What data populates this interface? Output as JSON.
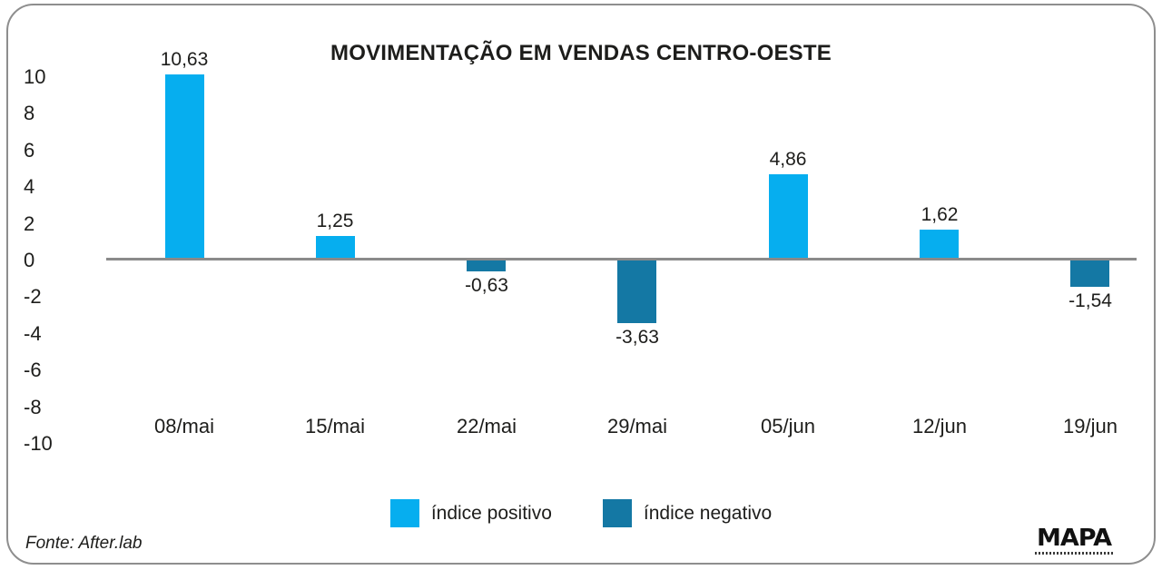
{
  "source_label": "Fonte: After.lab",
  "logo": {
    "name": "MAPA"
  },
  "colors": {
    "positive": "#06AEEF",
    "negative": "#1478A4",
    "axis_line": "#8a8a8a",
    "frame": "#8e8e8e",
    "text": "#1d1d1b"
  },
  "legend": [
    {
      "label": "índice positivo",
      "type": "positive"
    },
    {
      "label": "índice negativo",
      "type": "negative"
    }
  ],
  "chart_data": {
    "type": "bar",
    "title": "MOVIMENTAÇÃO EM VENDAS CENTRO-OESTE",
    "categories": [
      "08/mai",
      "15/mai",
      "22/mai",
      "29/mai",
      "05/jun",
      "12/jun",
      "19/jun"
    ],
    "values": [
      10.63,
      1.25,
      -0.63,
      -3.63,
      4.86,
      1.62,
      -1.54
    ],
    "value_labels": [
      "10,63",
      "1,25",
      "-0,63",
      "-3,63",
      "4,86",
      "1,62",
      "-1,54"
    ],
    "series_colors": {
      "positive": "#06AEEF",
      "negative": "#1478A4"
    },
    "yticks": [
      10,
      8,
      6,
      4,
      2,
      0,
      -2,
      -4,
      -6,
      -8,
      -10
    ],
    "ylim": [
      -10,
      10
    ],
    "xlabel": "",
    "ylabel": "",
    "grid": false,
    "legend_position": "bottom",
    "legend_entries": [
      "índice positivo",
      "índice negativo"
    ]
  }
}
